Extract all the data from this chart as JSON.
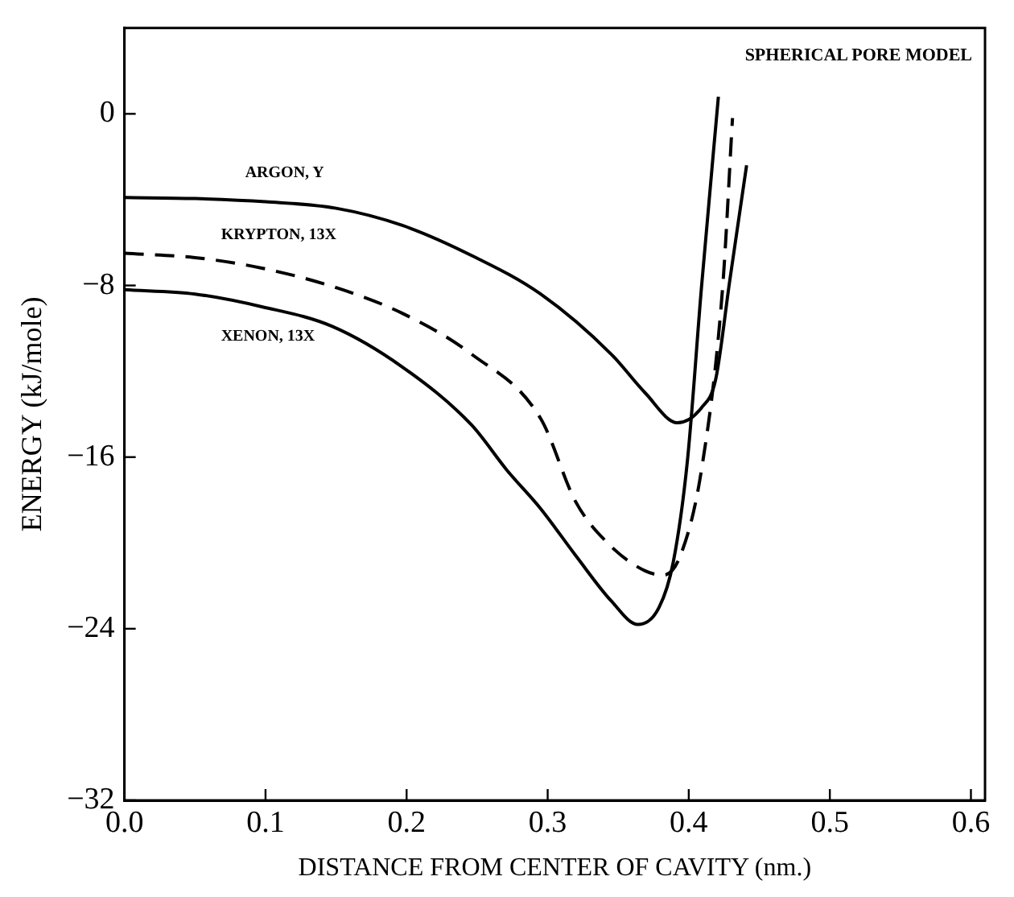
{
  "chart_data": {
    "type": "line",
    "title": "SPHERICAL PORE MODEL",
    "xlabel": "DISTANCE FROM CENTER OF CAVITY (nm.)",
    "ylabel": "ENERGY (kJ/mole)",
    "xlim": [
      0,
      0.61
    ],
    "xticks": [
      {
        "value": 0,
        "label": "0.0"
      },
      0.1,
      0.2,
      0.3,
      0.4,
      0.5,
      0.6
    ],
    "ylim": [
      -32,
      4
    ],
    "yticks": [
      -32,
      -24,
      -16,
      -8,
      0
    ],
    "grid": false,
    "legend": false,
    "marker": "none",
    "series": [
      {
        "name": "ARGON, Y",
        "color": "#000000",
        "line_style": "solid",
        "x": [
          0,
          0.05,
          0.1,
          0.15,
          0.197,
          0.246,
          0.295,
          0.345,
          0.369,
          0.392,
          0.409,
          0.419,
          0.429,
          0.441
        ],
        "values": [
          -3.9,
          -3.95,
          -4.1,
          -4.4,
          -5.2,
          -6.6,
          -8.4,
          -11.2,
          -13.0,
          -14.4,
          -13.7,
          -12.4,
          -7.8,
          -2.4
        ]
      },
      {
        "name": "KRYPTON, 13X",
        "color": "#000000",
        "line_style": "dashed",
        "x": [
          0,
          0.05,
          0.098,
          0.15,
          0.197,
          0.246,
          0.295,
          0.32,
          0.344,
          0.369,
          0.382,
          0.394,
          0.409,
          0.424,
          0.431
        ],
        "values": [
          -6.5,
          -6.7,
          -7.2,
          -8.1,
          -9.3,
          -11.2,
          -14.2,
          -18.1,
          -20.1,
          -21.3,
          -21.5,
          -20.6,
          -16.6,
          -8.1,
          -0.2
        ]
      },
      {
        "name": "XENON, 13X",
        "color": "#000000",
        "line_style": "solid",
        "x": [
          0,
          0.05,
          0.098,
          0.147,
          0.197,
          0.246,
          0.271,
          0.295,
          0.32,
          0.345,
          0.364,
          0.379,
          0.389,
          0.399,
          0.409,
          0.421
        ],
        "values": [
          -8.2,
          -8.4,
          -9.0,
          -9.9,
          -11.8,
          -14.5,
          -16.6,
          -18.4,
          -20.6,
          -22.7,
          -23.8,
          -23.0,
          -20.9,
          -16.2,
          -8.1,
          0.8
        ]
      }
    ]
  }
}
